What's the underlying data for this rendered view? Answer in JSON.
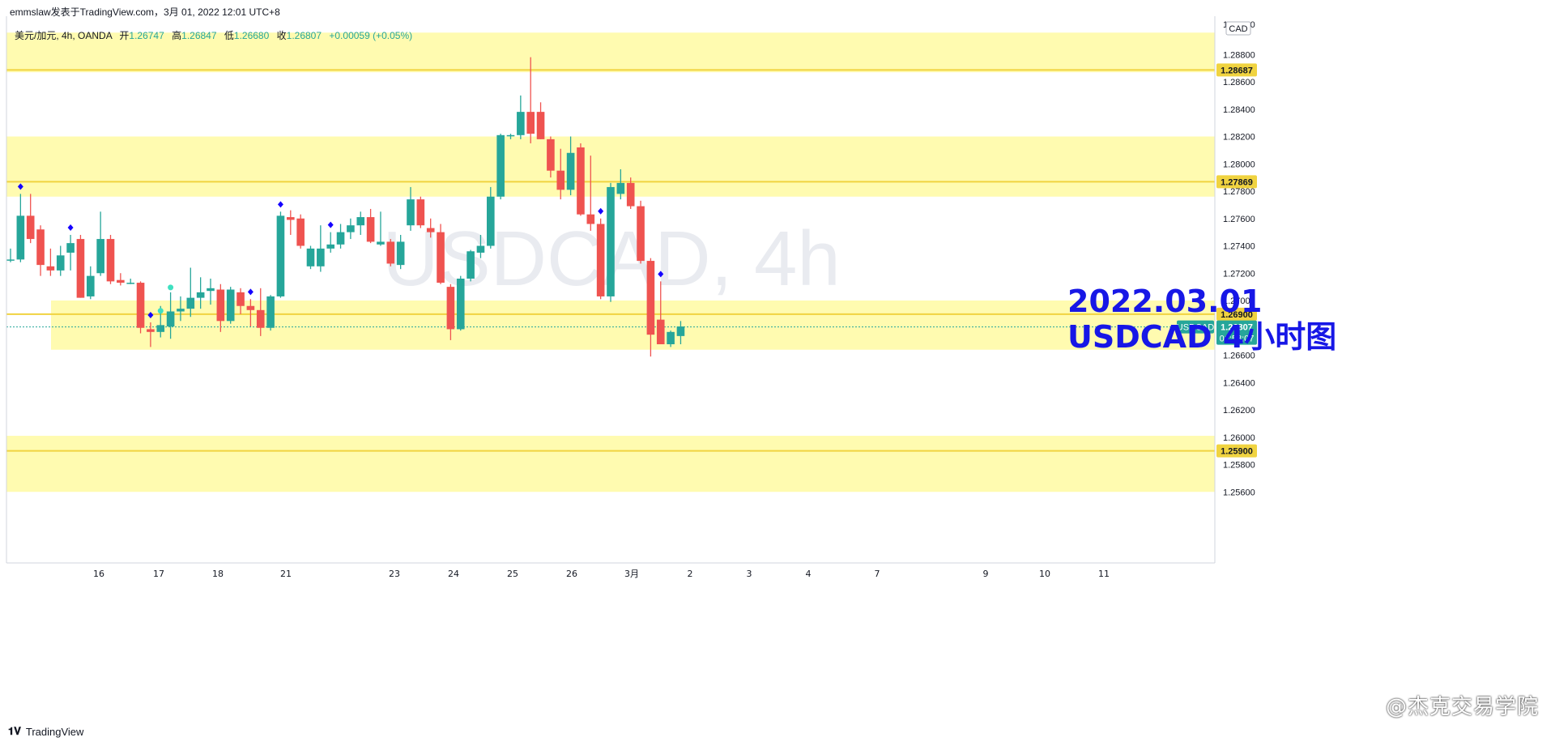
{
  "header": {
    "publisher": "emmslaw发表于TradingView.com，3月 01, 2022 12:01 UTC+8",
    "legend": {
      "symbol": "美元/加元, 4h, OANDA",
      "open_label": "开",
      "open": "1.26747",
      "high_label": "高",
      "high": "1.26847",
      "low_label": "低",
      "low": "1.26680",
      "close_label": "收",
      "close": "1.26807",
      "change": "+0.00059 (+0.05%)"
    }
  },
  "watermark": {
    "main": "USDCAD, 4h",
    "sub": "美元/加元"
  },
  "annotation": {
    "line1": "2022.03.01",
    "line2": "USDCAD 4小时图"
  },
  "price_axis": {
    "currency": "CAD",
    "top_partial": "1.29000",
    "current_symbol": "USDCAD",
    "current_price": "1.26807",
    "countdown": "01:58:07"
  },
  "footer": {
    "logo": "TradingView"
  },
  "brand": "@杰克交易学院",
  "colors": {
    "up": "#26a69a",
    "down": "#ef5350",
    "zone": "#fffbb0",
    "level": "#f0d340",
    "annotation": "#1717e6",
    "signal": "#1500ff",
    "current": "#26a69a"
  },
  "chart_data": {
    "type": "candlestick",
    "symbol": "USDCAD",
    "timeframe": "4h",
    "source": "OANDA",
    "y_ticks": [
      1.288,
      1.286,
      1.284,
      1.282,
      1.28,
      1.278,
      1.276,
      1.274,
      1.272,
      1.27,
      1.266,
      1.264,
      1.262,
      1.26,
      1.258,
      1.256
    ],
    "x_ticks": [
      "16",
      "17",
      "18",
      "21",
      "23",
      "24",
      "25",
      "26",
      "3月",
      "2",
      "3",
      "4",
      "7",
      "9",
      "10",
      "11"
    ],
    "ylim": [
      1.2508,
      1.2908
    ],
    "levels": [
      {
        "price": 1.28687,
        "label": "1.28687"
      },
      {
        "price": 1.27869,
        "label": "1.27869"
      },
      {
        "price": 1.269,
        "label": "1.26900"
      },
      {
        "price": 1.259,
        "label": "1.25900"
      }
    ],
    "zones": [
      {
        "from": 1.2867,
        "to": 1.2896
      },
      {
        "from": 1.2776,
        "to": 1.282
      },
      {
        "from": 1.2664,
        "to": 1.27
      },
      {
        "from": 1.256,
        "to": 1.2601
      }
    ],
    "current_price": 1.26807,
    "candles": [
      {
        "o": 1.273,
        "h": 1.2738,
        "l": 1.2728,
        "c": 1.273
      },
      {
        "o": 1.273,
        "h": 1.2778,
        "l": 1.2728,
        "c": 1.2762
      },
      {
        "o": 1.2762,
        "h": 1.2778,
        "l": 1.2742,
        "c": 1.2745
      },
      {
        "o": 1.2752,
        "h": 1.2755,
        "l": 1.2718,
        "c": 1.2726
      },
      {
        "o": 1.2725,
        "h": 1.2738,
        "l": 1.2718,
        "c": 1.2722
      },
      {
        "o": 1.2722,
        "h": 1.274,
        "l": 1.2718,
        "c": 1.2733
      },
      {
        "o": 1.2735,
        "h": 1.2748,
        "l": 1.2722,
        "c": 1.2742
      },
      {
        "o": 1.2745,
        "h": 1.2748,
        "l": 1.2702,
        "c": 1.2702
      },
      {
        "o": 1.2703,
        "h": 1.2725,
        "l": 1.2701,
        "c": 1.2718
      },
      {
        "o": 1.272,
        "h": 1.2765,
        "l": 1.2718,
        "c": 1.2745
      },
      {
        "o": 1.2745,
        "h": 1.2748,
        "l": 1.2712,
        "c": 1.2714
      },
      {
        "o": 1.2715,
        "h": 1.272,
        "l": 1.2711,
        "c": 1.2713
      },
      {
        "o": 1.2713,
        "h": 1.2716,
        "l": 1.2712,
        "c": 1.2713
      },
      {
        "o": 1.2713,
        "h": 1.2714,
        "l": 1.2676,
        "c": 1.268
      },
      {
        "o": 1.2679,
        "h": 1.2684,
        "l": 1.2666,
        "c": 1.2677
      },
      {
        "o": 1.2677,
        "h": 1.2696,
        "l": 1.2673,
        "c": 1.2682
      },
      {
        "o": 1.2681,
        "h": 1.2706,
        "l": 1.2672,
        "c": 1.2692
      },
      {
        "o": 1.2692,
        "h": 1.2703,
        "l": 1.2685,
        "c": 1.2694
      },
      {
        "o": 1.2694,
        "h": 1.2724,
        "l": 1.2688,
        "c": 1.2702
      },
      {
        "o": 1.2702,
        "h": 1.2717,
        "l": 1.2694,
        "c": 1.2706
      },
      {
        "o": 1.2707,
        "h": 1.2716,
        "l": 1.2697,
        "c": 1.2709
      },
      {
        "o": 1.2708,
        "h": 1.2712,
        "l": 1.2677,
        "c": 1.2685
      },
      {
        "o": 1.2685,
        "h": 1.271,
        "l": 1.2683,
        "c": 1.2708
      },
      {
        "o": 1.2706,
        "h": 1.2709,
        "l": 1.269,
        "c": 1.2696
      },
      {
        "o": 1.2696,
        "h": 1.2701,
        "l": 1.2681,
        "c": 1.2693
      },
      {
        "o": 1.2693,
        "h": 1.2709,
        "l": 1.2674,
        "c": 1.268
      },
      {
        "o": 1.268,
        "h": 1.2704,
        "l": 1.2678,
        "c": 1.2703
      },
      {
        "o": 1.2703,
        "h": 1.2765,
        "l": 1.2702,
        "c": 1.2762
      },
      {
        "o": 1.2761,
        "h": 1.2766,
        "l": 1.2748,
        "c": 1.2759
      },
      {
        "o": 1.276,
        "h": 1.2763,
        "l": 1.2738,
        "c": 1.274
      },
      {
        "o": 1.2725,
        "h": 1.274,
        "l": 1.2723,
        "c": 1.2738
      },
      {
        "o": 1.2725,
        "h": 1.2755,
        "l": 1.2721,
        "c": 1.2738
      },
      {
        "o": 1.2738,
        "h": 1.275,
        "l": 1.2735,
        "c": 1.2741
      },
      {
        "o": 1.2741,
        "h": 1.2756,
        "l": 1.2738,
        "c": 1.275
      },
      {
        "o": 1.275,
        "h": 1.276,
        "l": 1.2745,
        "c": 1.2755
      },
      {
        "o": 1.2755,
        "h": 1.2765,
        "l": 1.2748,
        "c": 1.2761
      },
      {
        "o": 1.2761,
        "h": 1.2767,
        "l": 1.2742,
        "c": 1.2743
      },
      {
        "o": 1.2741,
        "h": 1.2765,
        "l": 1.274,
        "c": 1.2743
      },
      {
        "o": 1.2743,
        "h": 1.2745,
        "l": 1.2725,
        "c": 1.2727
      },
      {
        "o": 1.2726,
        "h": 1.2748,
        "l": 1.2723,
        "c": 1.2743
      },
      {
        "o": 1.2755,
        "h": 1.2783,
        "l": 1.2751,
        "c": 1.2774
      },
      {
        "o": 1.2774,
        "h": 1.2776,
        "l": 1.2753,
        "c": 1.2755
      },
      {
        "o": 1.2753,
        "h": 1.276,
        "l": 1.2746,
        "c": 1.275
      },
      {
        "o": 1.275,
        "h": 1.2756,
        "l": 1.2712,
        "c": 1.2713
      },
      {
        "o": 1.271,
        "h": 1.2712,
        "l": 1.2671,
        "c": 1.2679
      },
      {
        "o": 1.2679,
        "h": 1.2718,
        "l": 1.2678,
        "c": 1.2716
      },
      {
        "o": 1.2716,
        "h": 1.2737,
        "l": 1.2714,
        "c": 1.2736
      },
      {
        "o": 1.2735,
        "h": 1.2748,
        "l": 1.2731,
        "c": 1.274
      },
      {
        "o": 1.274,
        "h": 1.2783,
        "l": 1.2738,
        "c": 1.2776
      },
      {
        "o": 1.2776,
        "h": 1.2822,
        "l": 1.2774,
        "c": 1.2821
      },
      {
        "o": 1.2821,
        "h": 1.2822,
        "l": 1.2818,
        "c": 1.2821
      },
      {
        "o": 1.2821,
        "h": 1.285,
        "l": 1.2818,
        "c": 1.2838
      },
      {
        "o": 1.2838,
        "h": 1.2878,
        "l": 1.2815,
        "c": 1.2822
      },
      {
        "o": 1.2838,
        "h": 1.2845,
        "l": 1.2818,
        "c": 1.2818
      },
      {
        "o": 1.2818,
        "h": 1.282,
        "l": 1.279,
        "c": 1.2795
      },
      {
        "o": 1.2795,
        "h": 1.2811,
        "l": 1.2774,
        "c": 1.2781
      },
      {
        "o": 1.2781,
        "h": 1.282,
        "l": 1.2777,
        "c": 1.2808
      },
      {
        "o": 1.2812,
        "h": 1.2815,
        "l": 1.2762,
        "c": 1.2763
      },
      {
        "o": 1.2763,
        "h": 1.2806,
        "l": 1.2751,
        "c": 1.2756
      },
      {
        "o": 1.2756,
        "h": 1.276,
        "l": 1.2701,
        "c": 1.2703
      },
      {
        "o": 1.2703,
        "h": 1.2786,
        "l": 1.2699,
        "c": 1.2783
      },
      {
        "o": 1.2778,
        "h": 1.2796,
        "l": 1.2774,
        "c": 1.2786
      },
      {
        "o": 1.2786,
        "h": 1.279,
        "l": 1.2767,
        "c": 1.2769
      },
      {
        "o": 1.2769,
        "h": 1.2773,
        "l": 1.2727,
        "c": 1.2729
      },
      {
        "o": 1.2729,
        "h": 1.2731,
        "l": 1.2659,
        "c": 1.2675
      },
      {
        "o": 1.2686,
        "h": 1.2714,
        "l": 1.2671,
        "c": 1.2668
      },
      {
        "o": 1.2668,
        "h": 1.2678,
        "l": 1.2666,
        "c": 1.2677
      },
      {
        "o": 1.2674,
        "h": 1.2685,
        "l": 1.2668,
        "c": 1.2681
      }
    ],
    "signals_above": [
      1,
      6,
      14,
      24,
      27,
      32,
      59,
      65
    ],
    "signals_below": [
      15,
      16
    ]
  }
}
